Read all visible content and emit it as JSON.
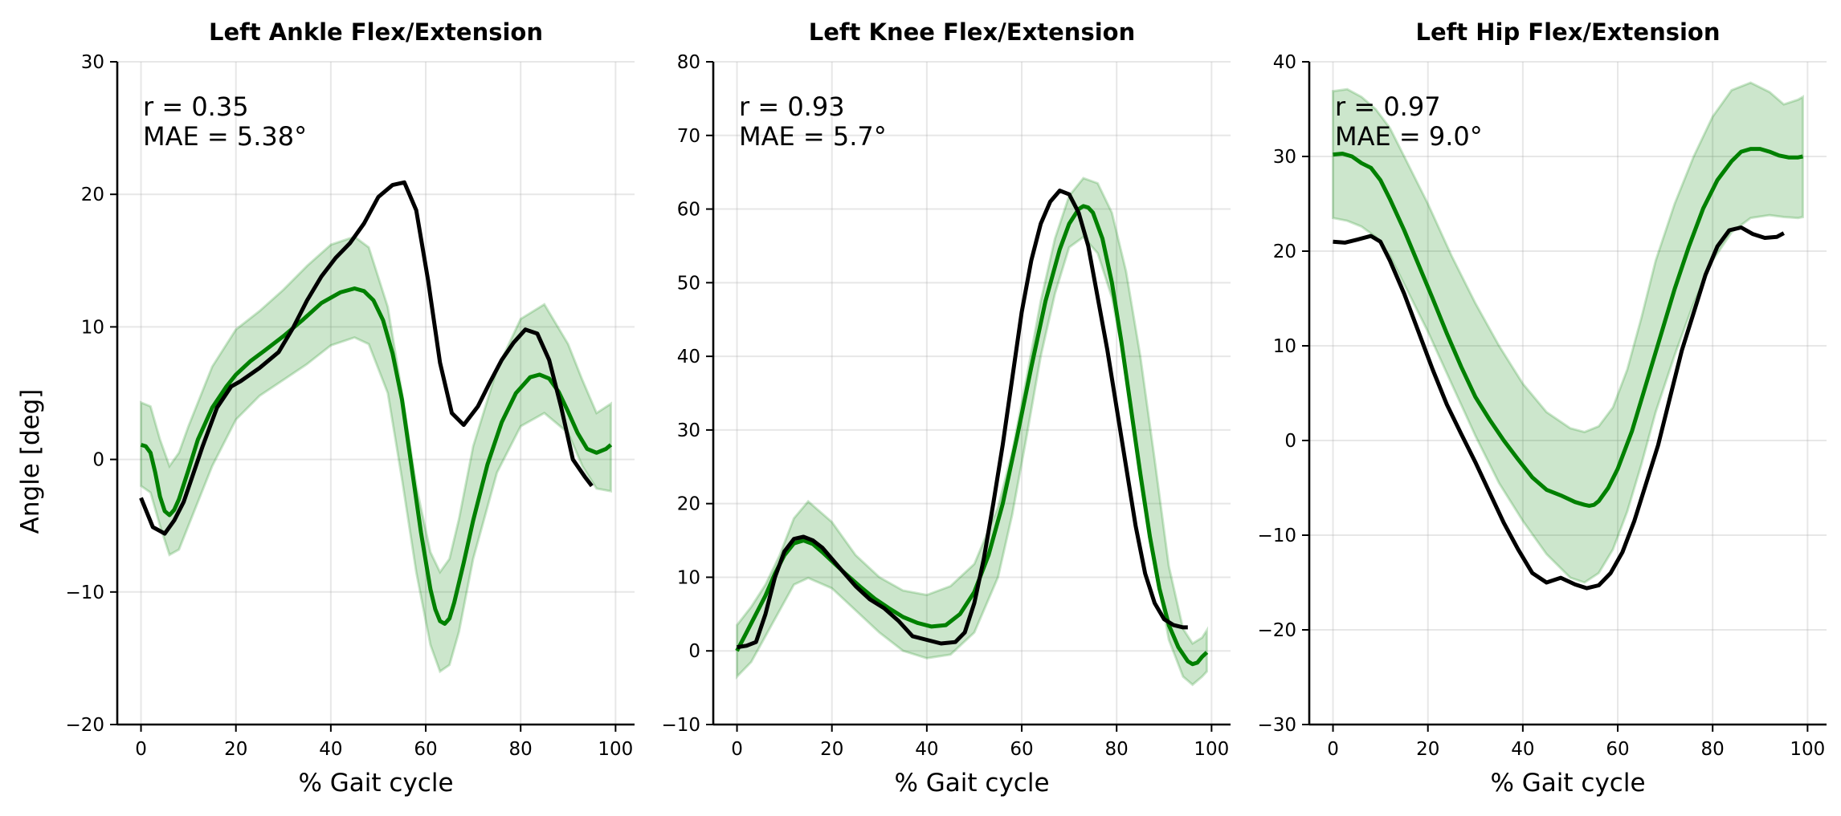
{
  "ylabel": "Angle [deg]",
  "colors": {
    "model": "#008000",
    "band": "#008000",
    "measured": "#000000"
  },
  "chart_data": [
    {
      "type": "line",
      "title": "Left Ankle Flex/Extension",
      "xlabel": "% Gait cycle",
      "xlim": [
        -5,
        104
      ],
      "ylim": [
        -20,
        30
      ],
      "xticks": [
        0,
        20,
        40,
        60,
        80,
        100
      ],
      "yticks": [
        -20,
        -10,
        0,
        10,
        20,
        30
      ],
      "annotations": [
        "r = 0.35",
        "MAE = 5.38°"
      ],
      "series": [
        {
          "role": "band",
          "x": [
            0,
            2,
            4,
            6,
            8,
            10,
            15,
            20,
            25,
            30,
            35,
            40,
            45,
            48,
            52,
            55,
            58,
            61,
            63,
            65,
            67,
            70,
            75,
            80,
            85,
            90,
            93,
            96,
            99
          ],
          "upper": [
            4.3,
            4,
            1.5,
            -0.5,
            0.5,
            2.5,
            7,
            9.8,
            11.2,
            12.8,
            14.6,
            16.2,
            16.8,
            16,
            11.5,
            5,
            -2,
            -7,
            -8.5,
            -7.5,
            -4.5,
            1,
            6.8,
            10.6,
            11.7,
            8.7,
            6,
            3.5,
            4.2
          ],
          "lower": [
            -2,
            -2.5,
            -5,
            -7.2,
            -6.8,
            -5,
            -0.5,
            3,
            4.8,
            6,
            7.2,
            8.6,
            9.2,
            8.7,
            5,
            -1.5,
            -8.5,
            -14,
            -16,
            -15.5,
            -13,
            -7.5,
            -1,
            2.5,
            3.5,
            2,
            -0.5,
            -2.2,
            -2.4
          ]
        },
        {
          "role": "model",
          "x": [
            0,
            1,
            2,
            3,
            4,
            5,
            6,
            7,
            8,
            10,
            12,
            15,
            18,
            20,
            23,
            26,
            30,
            34,
            38,
            42,
            45,
            47,
            49,
            51,
            53,
            55,
            57,
            59,
            61,
            62,
            63,
            64,
            65,
            66,
            68,
            70,
            73,
            76,
            79,
            82,
            84,
            86,
            88,
            90,
            92,
            94,
            96,
            98,
            99
          ],
          "y": [
            1.1,
            1,
            0.5,
            -1,
            -2.8,
            -3.9,
            -4.2,
            -3.8,
            -3,
            -0.8,
            1.5,
            3.9,
            5.5,
            6.4,
            7.4,
            8.2,
            9.3,
            10.5,
            11.8,
            12.6,
            12.9,
            12.7,
            12,
            10.5,
            8,
            4.5,
            -0.5,
            -5.5,
            -9.8,
            -11.3,
            -12.2,
            -12.4,
            -12,
            -10.8,
            -7.8,
            -4.6,
            -0.4,
            2.8,
            5,
            6.2,
            6.4,
            6.1,
            5.1,
            3.6,
            2,
            0.8,
            0.5,
            0.8,
            1.1
          ]
        },
        {
          "role": "measured",
          "x": [
            0,
            2.5,
            4,
            5,
            7,
            9,
            11,
            13,
            16,
            19,
            21,
            25,
            29,
            32,
            35,
            38,
            41,
            44,
            47,
            50,
            53,
            55.5,
            58,
            60.5,
            63,
            65.5,
            68,
            71,
            73.5,
            76,
            78.5,
            81,
            83.5,
            86,
            88.5,
            91,
            93.5,
            95
          ],
          "y": [
            -2.9,
            -5.1,
            -5.4,
            -5.6,
            -4.6,
            -3.2,
            -1.1,
            1,
            3.9,
            5.5,
            5.9,
            6.9,
            8.1,
            9.9,
            12,
            13.8,
            15.2,
            16.3,
            17.8,
            19.8,
            20.7,
            20.9,
            18.8,
            13.5,
            7.3,
            3.5,
            2.6,
            4,
            5.8,
            7.5,
            8.8,
            9.8,
            9.5,
            7.5,
            4,
            0,
            -1.3,
            -2
          ]
        }
      ]
    },
    {
      "type": "line",
      "title": "Left Knee Flex/Extension",
      "xlabel": "% Gait cycle",
      "xlim": [
        -5,
        104
      ],
      "ylim": [
        -10,
        80
      ],
      "xticks": [
        0,
        20,
        40,
        60,
        80,
        100
      ],
      "yticks": [
        -10,
        0,
        10,
        20,
        30,
        40,
        50,
        60,
        70,
        80
      ],
      "annotations": [
        "r = 0.93",
        "MAE = 5.7°"
      ],
      "series": [
        {
          "role": "band",
          "x": [
            0,
            3,
            6,
            9,
            12,
            15,
            20,
            25,
            30,
            35,
            40,
            45,
            50,
            55,
            58,
            61,
            64,
            67,
            70,
            73,
            76,
            79,
            82,
            85,
            88,
            91,
            94,
            96,
            98,
            99
          ],
          "upper": [
            3.5,
            6,
            9,
            13,
            18,
            20.3,
            17.5,
            13,
            10,
            8.2,
            7.6,
            8.8,
            11.8,
            19.5,
            27,
            37,
            47.5,
            56,
            61.8,
            64.2,
            63.5,
            59.5,
            51.5,
            40,
            26,
            11.5,
            3,
            1,
            1.8,
            2.8
          ],
          "lower": [
            -3.5,
            -1.5,
            2,
            5.5,
            9,
            9.9,
            8.5,
            5.5,
            2.5,
            0,
            -1,
            -0.5,
            2.5,
            10,
            18.5,
            29,
            40,
            48.5,
            54.8,
            56.2,
            54,
            48,
            38,
            25,
            12,
            1.5,
            -3.5,
            -4.6,
            -3.5,
            -2.8
          ]
        },
        {
          "role": "model",
          "x": [
            0,
            2,
            4,
            6,
            8,
            10,
            12,
            14,
            16,
            18,
            20,
            23,
            26,
            29,
            32,
            35,
            38,
            41,
            44,
            47,
            50,
            53,
            56,
            59,
            62,
            65,
            68,
            70,
            72,
            73,
            74,
            75,
            77,
            79,
            81,
            83,
            85,
            87,
            89,
            91,
            93,
            95,
            96,
            97,
            98,
            99
          ],
          "y": [
            0,
            2.5,
            5,
            7.5,
            10.5,
            13,
            14.6,
            15,
            14.5,
            13.4,
            12.2,
            10.4,
            8.7,
            7.1,
            5.8,
            4.6,
            3.8,
            3.3,
            3.5,
            5,
            8,
            13,
            20,
            29,
            38.5,
            47.5,
            54.5,
            58,
            60,
            60.4,
            60.2,
            59.5,
            56,
            50,
            42,
            33,
            24,
            15.5,
            8.5,
            3.5,
            0.5,
            -1.4,
            -1.8,
            -1.6,
            -0.8,
            -0.2
          ]
        },
        {
          "role": "measured",
          "x": [
            0,
            2,
            4,
            6,
            8,
            10,
            12,
            14,
            16,
            18,
            20,
            22,
            25,
            28,
            31,
            34,
            37,
            40,
            43,
            46,
            48,
            50,
            52,
            54,
            56,
            58,
            60,
            62,
            64,
            66,
            68,
            70,
            72,
            74,
            76,
            78,
            80,
            82,
            84,
            86,
            88,
            90,
            92,
            94,
            95
          ],
          "y": [
            0.5,
            0.7,
            1.2,
            5,
            10,
            13.5,
            15.2,
            15.5,
            15,
            14,
            12.5,
            11,
            8.8,
            7,
            5.8,
            4.1,
            2,
            1.5,
            1,
            1.2,
            2.5,
            6.5,
            12.5,
            20,
            28,
            37,
            46,
            53,
            58,
            61,
            62.5,
            62,
            59.5,
            55,
            48,
            41,
            33,
            25,
            17,
            10.5,
            6.5,
            4.3,
            3.5,
            3.2,
            3.2
          ]
        }
      ]
    },
    {
      "type": "line",
      "title": "Left Hip Flex/Extension",
      "xlabel": "% Gait cycle",
      "xlim": [
        -5,
        104
      ],
      "ylim": [
        -30,
        40
      ],
      "xticks": [
        0,
        20,
        40,
        60,
        80,
        100
      ],
      "yticks": [
        -30,
        -20,
        -10,
        0,
        10,
        20,
        30,
        40
      ],
      "annotations": [
        "r = 0.97",
        "MAE = 9.0°"
      ],
      "series": [
        {
          "role": "band",
          "x": [
            0,
            3,
            6,
            9,
            12,
            15,
            20,
            25,
            30,
            35,
            40,
            45,
            50,
            53,
            56,
            59,
            62,
            65,
            68,
            72,
            76,
            80,
            84,
            88,
            92,
            95,
            98,
            99
          ],
          "upper": [
            36.9,
            37.1,
            36.3,
            35,
            33,
            30,
            25,
            19.5,
            14.5,
            10,
            6,
            3,
            1.3,
            0.9,
            1.5,
            3.5,
            7.5,
            13,
            19,
            25,
            30,
            34.2,
            37,
            37.8,
            36.8,
            35.5,
            36,
            36.3
          ],
          "lower": [
            23.5,
            23.2,
            22.6,
            21.5,
            19.5,
            16.5,
            11.5,
            6,
            0.5,
            -4.5,
            -8.5,
            -12,
            -14.5,
            -15,
            -14,
            -11.5,
            -7.5,
            -2.5,
            3,
            9,
            14.5,
            19,
            22,
            23.5,
            23.8,
            23.6,
            23.5,
            23.6
          ]
        },
        {
          "role": "model",
          "x": [
            0,
            2,
            4,
            6,
            8,
            10,
            12,
            15,
            18,
            21,
            24,
            27,
            30,
            33,
            36,
            39,
            42,
            45,
            48,
            51,
            53,
            54,
            55,
            56,
            58,
            60,
            63,
            66,
            69,
            72,
            75,
            78,
            81,
            84,
            86,
            88,
            90,
            92,
            94,
            96,
            98,
            99
          ],
          "y": [
            30.2,
            30.3,
            30,
            29.3,
            28.8,
            27.5,
            25.5,
            22.2,
            18.6,
            15,
            11.3,
            7.8,
            4.6,
            2.2,
            0,
            -2,
            -3.9,
            -5.2,
            -5.8,
            -6.5,
            -6.8,
            -6.9,
            -6.8,
            -6.4,
            -5,
            -3,
            1,
            6,
            11,
            16,
            20.5,
            24.5,
            27.5,
            29.5,
            30.5,
            30.8,
            30.8,
            30.5,
            30.1,
            29.9,
            29.9,
            30
          ]
        },
        {
          "role": "measured",
          "x": [
            0,
            2.5,
            5,
            8,
            10,
            12,
            15,
            18,
            21,
            24,
            27,
            30,
            33,
            36,
            39,
            42,
            45,
            48,
            51,
            53.5,
            56,
            58.5,
            61,
            63.5,
            66,
            68.5,
            71,
            73.5,
            76,
            78.5,
            81,
            83.5,
            86,
            88.5,
            91,
            93.5,
            95
          ],
          "y": [
            21,
            20.9,
            21.2,
            21.6,
            21,
            19,
            15.5,
            11.5,
            7.5,
            3.8,
            0.7,
            -2.3,
            -5.5,
            -8.7,
            -11.5,
            -14,
            -15,
            -14.5,
            -15.2,
            -15.6,
            -15.3,
            -14,
            -11.8,
            -8.5,
            -4.5,
            -0.5,
            4.5,
            9.5,
            13.5,
            17.5,
            20.5,
            22.2,
            22.5,
            21.8,
            21.4,
            21.5,
            21.9
          ]
        }
      ]
    }
  ]
}
